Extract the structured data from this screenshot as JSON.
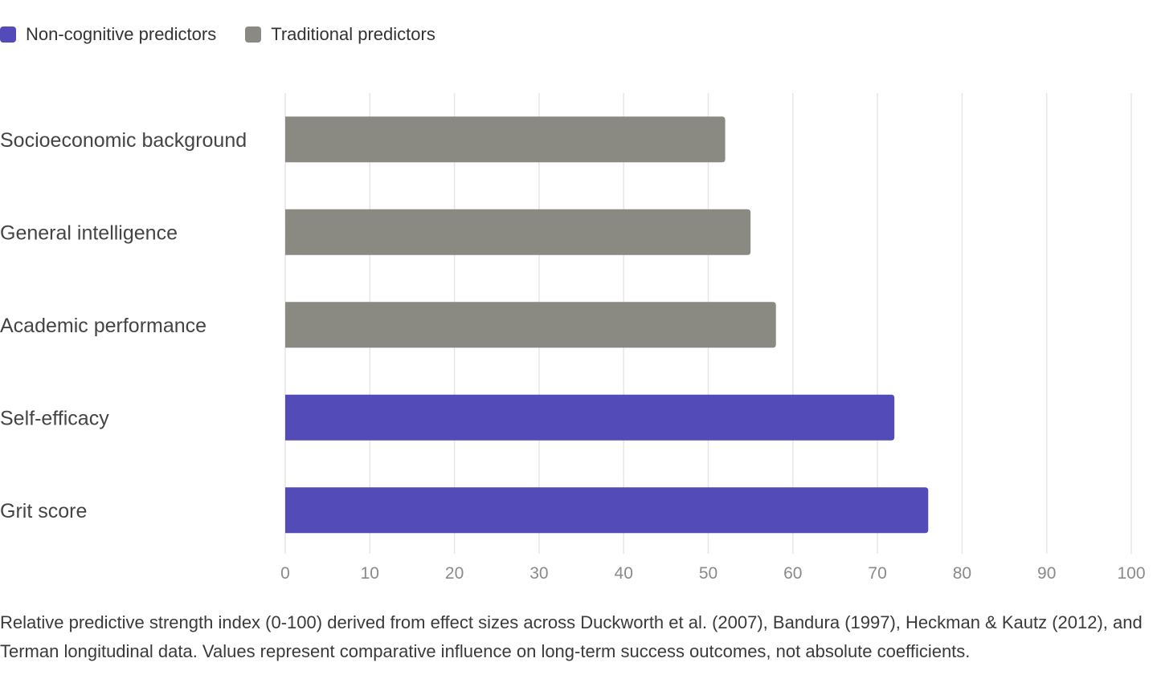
{
  "legend": {
    "items": [
      {
        "label": "Non-cognitive predictors",
        "color": "#534bb8"
      },
      {
        "label": "Traditional predictors",
        "color": "#8a8a82"
      }
    ]
  },
  "chart_data": {
    "type": "bar",
    "orientation": "horizontal",
    "categories": [
      "Socioeconomic background",
      "General intelligence",
      "Academic performance",
      "Self-efficacy",
      "Grit score"
    ],
    "values": [
      52,
      55,
      58,
      72,
      76
    ],
    "groups": [
      "Traditional predictors",
      "Traditional predictors",
      "Traditional predictors",
      "Non-cognitive predictors",
      "Non-cognitive predictors"
    ],
    "xlim": [
      0,
      100
    ],
    "xticks": [
      0,
      10,
      20,
      30,
      40,
      50,
      60,
      70,
      80,
      90,
      100
    ],
    "grid": "vertical",
    "legend_position": "top-left",
    "colors": {
      "Non-cognitive predictors": "#534bb8",
      "Traditional predictors": "#8a8a82",
      "grid": "#e6e6e6"
    }
  },
  "caption": "Relative predictive strength index (0-100) derived from effect sizes across Duckworth et al. (2007), Bandura (1997), Heckman & Kautz (2012), and Terman longitudinal data. Values represent comparative influence on long-term success outcomes, not absolute coefficients."
}
